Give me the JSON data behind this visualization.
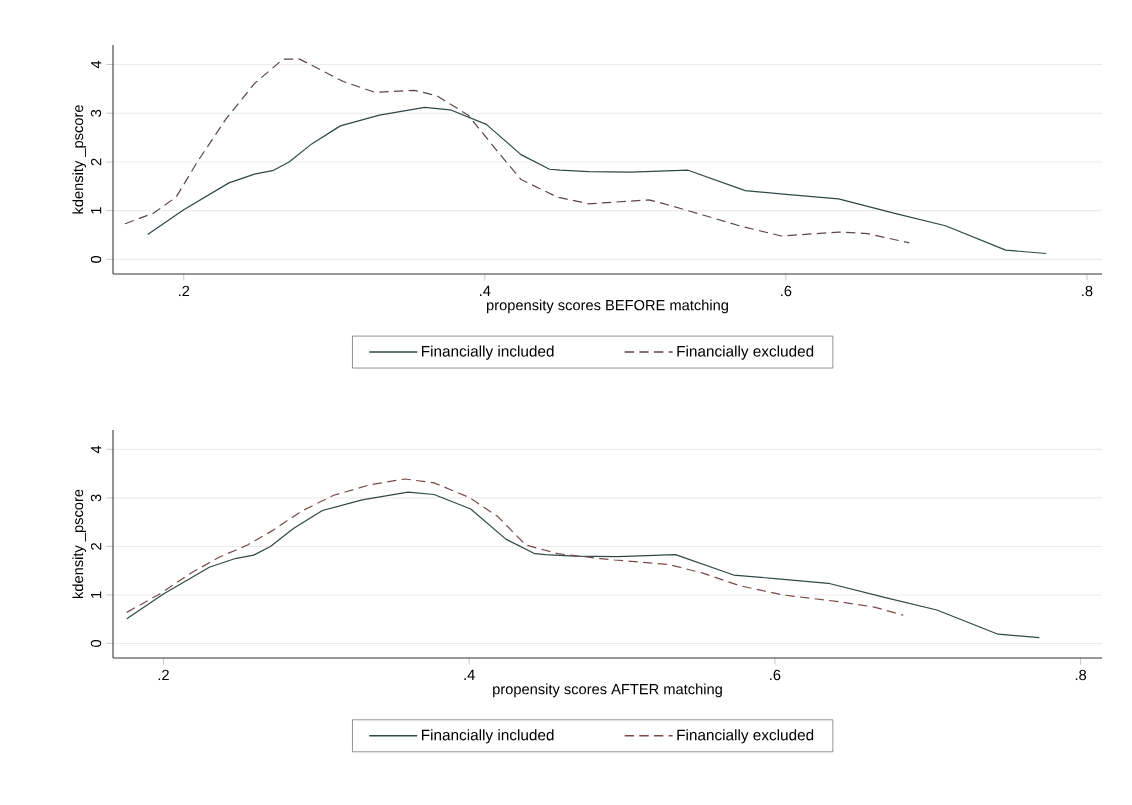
{
  "chart_data": [
    {
      "type": "line",
      "xlabel": "propensity scores BEFORE matching",
      "ylabel": "kdensity _pscore",
      "xlim": [
        0.153,
        0.81
      ],
      "ylim": [
        -0.3,
        4.4
      ],
      "xticks": [
        {
          "value": 0.2,
          "label": ".2"
        },
        {
          "value": 0.4,
          "label": ".4"
        },
        {
          "value": 0.6,
          "label": ".6"
        },
        {
          "value": 0.8,
          "label": ".8"
        }
      ],
      "yticks": [
        0,
        1,
        2,
        3,
        4
      ],
      "grid": "y",
      "legend": "bottom",
      "series": [
        {
          "name": "Financially included",
          "color": "#2e4848",
          "line_style": "solid",
          "x": [
            0.176,
            0.2,
            0.23,
            0.247,
            0.259,
            0.27,
            0.285,
            0.304,
            0.33,
            0.36,
            0.377,
            0.401,
            0.424,
            0.443,
            0.45,
            0.469,
            0.497,
            0.535,
            0.573,
            0.602,
            0.635,
            0.673,
            0.706,
            0.746,
            0.773
          ],
          "values": [
            0.51,
            1.02,
            1.57,
            1.75,
            1.82,
            2.0,
            2.37,
            2.74,
            2.96,
            3.12,
            3.07,
            2.77,
            2.15,
            1.85,
            1.83,
            1.8,
            1.79,
            1.83,
            1.41,
            1.33,
            1.24,
            0.94,
            0.69,
            0.19,
            0.12
          ]
        },
        {
          "name": "Financially excluded",
          "color": "#5e4444",
          "line_style": "dashed",
          "x": [
            0.161,
            0.18,
            0.195,
            0.209,
            0.228,
            0.247,
            0.266,
            0.277,
            0.306,
            0.327,
            0.353,
            0.368,
            0.389,
            0.408,
            0.424,
            0.448,
            0.469,
            0.509,
            0.517,
            0.545,
            0.569,
            0.597,
            0.635,
            0.654,
            0.682
          ],
          "values": [
            0.73,
            0.95,
            1.28,
            2.0,
            2.88,
            3.61,
            4.11,
            4.11,
            3.65,
            3.43,
            3.47,
            3.36,
            2.96,
            2.23,
            1.64,
            1.28,
            1.14,
            1.22,
            1.16,
            0.91,
            0.69,
            0.48,
            0.56,
            0.53,
            0.34
          ]
        }
      ]
    },
    {
      "type": "line",
      "xlabel": "propensity scores AFTER matching",
      "ylabel": "kdensity _pscore",
      "xlim": [
        0.167,
        0.814
      ],
      "ylim": [
        -0.3,
        4.4
      ],
      "xticks": [
        {
          "value": 0.2,
          "label": ".2"
        },
        {
          "value": 0.4,
          "label": ".4"
        },
        {
          "value": 0.6,
          "label": ".6"
        },
        {
          "value": 0.8,
          "label": ".8"
        }
      ],
      "yticks": [
        0,
        1,
        2,
        3,
        4
      ],
      "grid": "y",
      "legend": "bottom",
      "series": [
        {
          "name": "Financially included",
          "color": "#2e4848",
          "line_style": "solid",
          "x": [
            0.176,
            0.2,
            0.23,
            0.247,
            0.259,
            0.27,
            0.285,
            0.304,
            0.33,
            0.36,
            0.377,
            0.401,
            0.424,
            0.443,
            0.45,
            0.469,
            0.497,
            0.535,
            0.573,
            0.602,
            0.635,
            0.673,
            0.706,
            0.746,
            0.773
          ],
          "values": [
            0.51,
            1.02,
            1.57,
            1.75,
            1.82,
            2.0,
            2.37,
            2.74,
            2.96,
            3.12,
            3.07,
            2.77,
            2.15,
            1.85,
            1.83,
            1.8,
            1.79,
            1.83,
            1.41,
            1.33,
            1.24,
            0.94,
            0.69,
            0.19,
            0.12
          ]
        },
        {
          "name": "Financially excluded",
          "color": "#7a4a4a",
          "line_style": "dashed",
          "x": [
            0.176,
            0.197,
            0.218,
            0.236,
            0.255,
            0.271,
            0.29,
            0.311,
            0.335,
            0.358,
            0.377,
            0.4,
            0.419,
            0.437,
            0.458,
            0.486,
            0.495,
            0.53,
            0.553,
            0.577,
            0.605,
            0.642,
            0.665,
            0.684
          ],
          "values": [
            0.64,
            1.01,
            1.45,
            1.77,
            2.03,
            2.32,
            2.72,
            3.05,
            3.27,
            3.39,
            3.31,
            3.01,
            2.61,
            2.03,
            1.85,
            1.75,
            1.72,
            1.63,
            1.45,
            1.19,
            1.0,
            0.86,
            0.75,
            0.58
          ]
        }
      ]
    }
  ]
}
